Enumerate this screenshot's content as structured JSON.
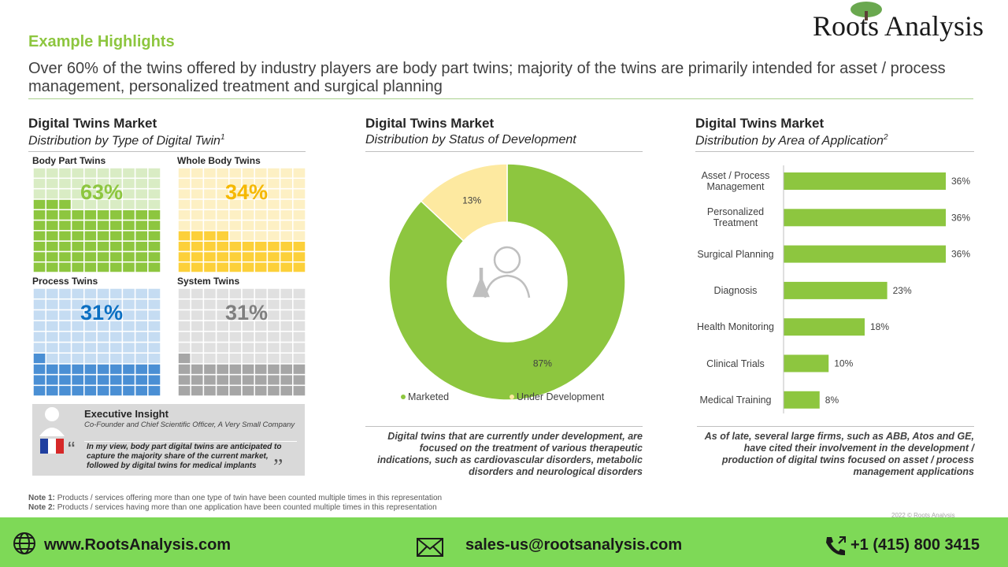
{
  "header": {
    "title": "Example Highlights",
    "headline": "Over 60% of the twins offered by industry players are body part twins; majority of the twins are primarily intended for asset / process management, personalized treatment and surgical planning",
    "logo": "Roots Analysis"
  },
  "chart_data": [
    {
      "type": "waffle",
      "title": "Digital Twins Market",
      "subtitle": "Distribution by Type of Digital Twin",
      "subtitle_note": "1",
      "categories": [
        "Body Part Twins",
        "Whole Body Twins",
        "Process Twins",
        "System Twins"
      ],
      "values": [
        63,
        34,
        31,
        31
      ],
      "value_labels": [
        "63%",
        "34%",
        "31%",
        "31%"
      ],
      "colors": [
        "#8dc63f",
        "#fcd03a",
        "#4a8fd4",
        "#a6a6a6"
      ],
      "empty_colors": [
        "#d9ecc4",
        "#fdf0c4",
        "#c5dcf2",
        "#e0e0e0"
      ],
      "label_colors": [
        "#8dc63f",
        "#f5b800",
        "#0b6fc2",
        "#7f7f7f"
      ]
    },
    {
      "type": "donut",
      "title": "Digital Twins Market",
      "subtitle": "Distribution by Status of Development",
      "categories": [
        "Marketed",
        "Under Development"
      ],
      "values": [
        87,
        13
      ],
      "value_labels": [
        "87%",
        "13%"
      ],
      "colors": [
        "#8dc63f",
        "#fde9a0"
      ],
      "note": "Digital twins that are currently under development, are focused  on the treatment of various therapeutic indications, such as cardiovascular disorders, metabolic disorders and neurological disorders"
    },
    {
      "type": "hbar",
      "title": "Digital Twins Market",
      "subtitle": "Distribution by Area of Application",
      "subtitle_note": "2",
      "categories": [
        "Asset / Process Management",
        "Personalized Treatment",
        "Surgical Planning",
        "Diagnosis",
        "Health Monitoring",
        "Clinical Trials",
        "Medical Training"
      ],
      "values": [
        36,
        36,
        36,
        23,
        18,
        10,
        8
      ],
      "value_labels": [
        "36%",
        "36%",
        "36%",
        "23%",
        "18%",
        "10%",
        "8%"
      ],
      "color": "#8dc63f",
      "note": "As of late, several large firms, such as ABB, Atos and GE, have cited their involvement in the development / production of digital twins focused on asset / process management applications"
    }
  ],
  "insight": {
    "title": "Executive Insight",
    "role": "Co-Founder and Chief Scientific Officer, A Very Small Company",
    "quote": "In my view, body part digital twins are anticipated to capture the majority share of the current market, followed by digital twins for medical implants"
  },
  "notes": [
    {
      "label": "Note 1:",
      "text": "Products / services offering more than one type of twin have been counted multiple times in this representation"
    },
    {
      "label": "Note 2:",
      "text": "Products / services having more than one application have been counted multiple times in this representation"
    }
  ],
  "copyright": "2022 © Roots Analysis",
  "footer": {
    "website": "www.RootsAnalysis.com",
    "email": "sales-us@rootsanalysis.com",
    "phone": "+1 (415) 800 3415"
  }
}
